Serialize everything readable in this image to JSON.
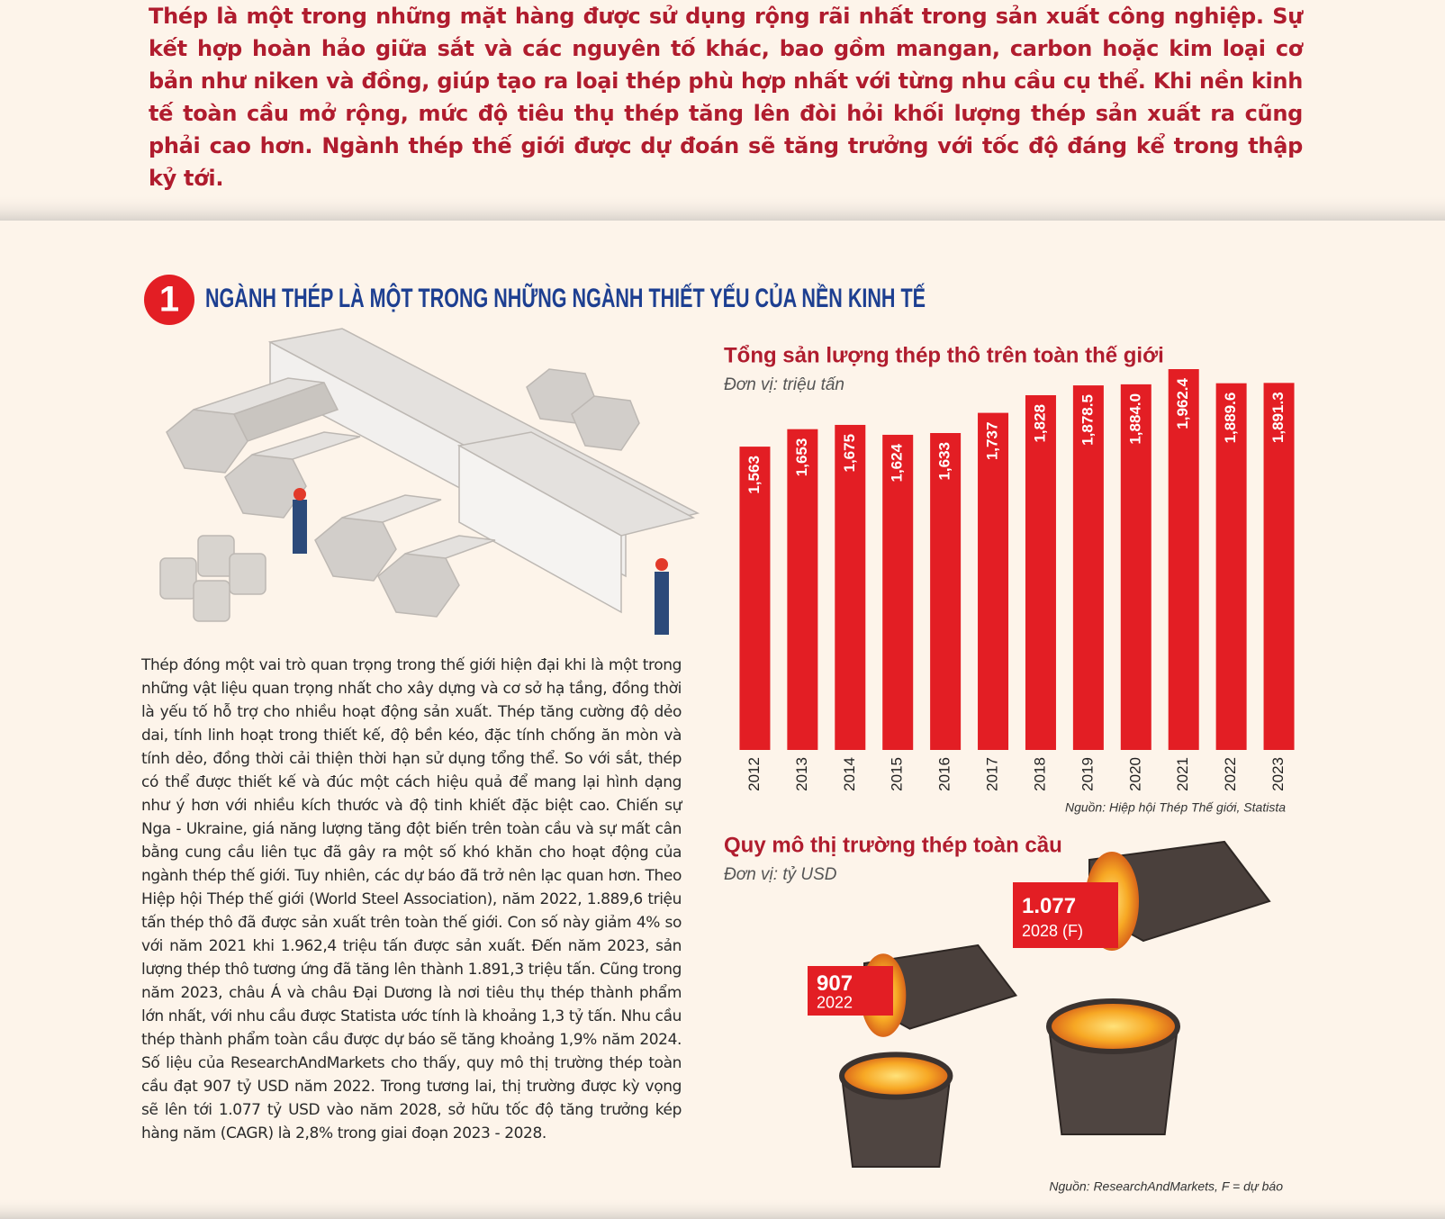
{
  "intro": "Thép là một trong những mặt hàng được sử dụng rộng rãi nhất trong sản xuất công nghiệp. Sự kết hợp hoàn hảo giữa sắt và các nguyên tố khác, bao gồm mangan, carbon hoặc kim loại cơ bản như niken và đồng, giúp tạo ra loại thép phù hợp nhất với từng nhu cầu cụ thể. Khi nền kinh tế toàn cầu mở rộng, mức độ tiêu thụ thép tăng lên đòi hỏi khối lượng thép sản xuất ra cũng phải cao hơn. Ngành thép thế giới được dự đoán sẽ tăng trưởng với tốc độ đáng kể trong thập kỷ tới.",
  "section": {
    "number": "1",
    "title": "NGÀNH THÉP LÀ MỘT TRONG NHỮNG NGÀNH THIẾT YẾU CỦA NỀN KINH TẾ"
  },
  "body": "Thép đóng một vai trò quan trọng trong thế giới hiện đại khi là một trong những vật liệu quan trọng nhất cho xây dựng và cơ sở hạ tầng, đồng thời là yếu tố hỗ trợ cho nhiều hoạt động sản xuất. Thép tăng cường độ dẻo dai, tính linh hoạt trong thiết kế, độ bền kéo, đặc tính chống ăn mòn và tính dẻo, đồng thời cải thiện thời hạn sử dụng tổng thể. So với sắt, thép có thể được thiết kế và đúc một cách hiệu quả để mang lại hình dạng như ý hơn với nhiều kích thước và độ tinh khiết đặc biệt cao. Chiến sự Nga - Ukraine, giá năng lượng tăng đột biến trên toàn cầu và sự mất cân bằng cung cầu liên tục đã gây ra một số khó khăn cho hoạt động của ngành thép thế giới. Tuy nhiên, các dự báo đã trở nên lạc quan hơn. Theo Hiệp hội Thép thế giới (World Steel Association), năm 2022, 1.889,6 triệu tấn thép thô đã được sản xuất trên toàn thế giới. Con số này giảm 4% so với năm 2021 khi 1.962,4 triệu tấn được sản xuất. Đến năm 2023, sản lượng thép thô tương ứng đã tăng lên thành 1.891,3 triệu tấn. Cũng trong năm 2023, châu Á và châu Đại Dương là nơi tiêu thụ thép thành phẩm lớn nhất, với nhu cầu được Statista ước tính là khoảng 1,3 tỷ tấn. Nhu cầu thép thành phẩm toàn cầu được dự báo sẽ tăng khoảng 1,9% năm 2024. Số liệu của ResearchAndMarkets cho thấy, quy mô thị trường thép toàn cầu đạt 907 tỷ USD năm 2022. Trong tương lai, thị trường được kỳ vọng sẽ lên tới 1.077 tỷ USD vào năm 2028, sở hữu tốc độ tăng trưởng kép hàng năm (CAGR) là 2,8% trong giai đoạn 2023 - 2028.",
  "chart_data": [
    {
      "type": "bar",
      "title": "Tổng sản lượng thép thô trên toàn thế giới",
      "subtitle": "Đơn vị: triệu tấn",
      "categories": [
        "2012",
        "2013",
        "2014",
        "2015",
        "2016",
        "2017",
        "2018",
        "2019",
        "2020",
        "2021",
        "2022",
        "2023"
      ],
      "values": [
        1563,
        1653,
        1675,
        1624,
        1633,
        1737,
        1828,
        1878.5,
        1884.0,
        1962.4,
        1889.6,
        1891.3
      ],
      "value_labels": [
        "1,563",
        "1,653",
        "1,675",
        "1,624",
        "1,633",
        "1,737",
        "1,828",
        "1,878.5",
        "1,884.0",
        "1,962.4",
        "1,889.6",
        "1,891.3"
      ],
      "color": "#e31e24",
      "source": "Nguồn: Hiệp hội Thép Thế giới, Statista"
    },
    {
      "type": "pictorial",
      "title": "Quy mô thị trường thép toàn cầu",
      "subtitle": "Đơn vị: tỷ USD",
      "categories": [
        "2022",
        "2028 (F)"
      ],
      "values": [
        907,
        1077
      ],
      "value_labels": [
        "907",
        "1.077"
      ],
      "color": "#e31e24",
      "source": "Nguồn: ResearchAndMarkets, F = dự báo"
    }
  ]
}
